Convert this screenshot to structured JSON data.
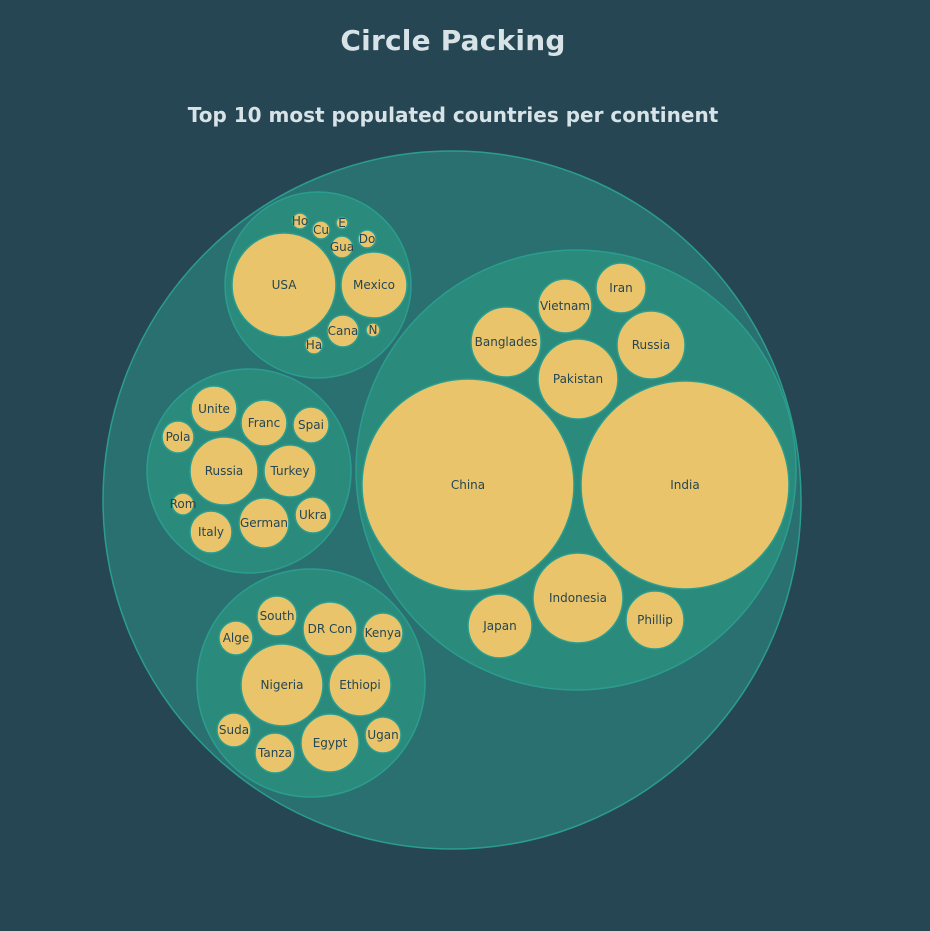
{
  "title": "Circle Packing",
  "subtitle": "Top 10 most populated countries per continent",
  "colors": {
    "background": "#264653",
    "root_fill": "#2a7070",
    "group_fill": "#2a8a7c",
    "stroke": "#2a9d8f",
    "leaf_fill": "#e9c46a",
    "leaf_stroke": "#2a9d8f",
    "leaf_text": "#264653",
    "title_text": "#d8e3e7"
  },
  "chart_data": {
    "type": "circle-packing",
    "groups": [
      {
        "leaves": [
          {
            "label": "China",
            "value": 1412
          },
          {
            "label": "India",
            "value": 1408
          },
          {
            "label": "Indonesia",
            "value": 274
          },
          {
            "label": "Pakistan",
            "value": 232
          },
          {
            "label": "Banglades",
            "value": 169
          },
          {
            "label": "Japan",
            "value": 126
          },
          {
            "label": "Phillip",
            "value": 114
          },
          {
            "label": "Vietnam",
            "value": 98
          },
          {
            "label": "Iran",
            "value": 88
          },
          {
            "label": "Russia",
            "value": 143
          }
        ]
      },
      {
        "leaves": [
          {
            "label": "Russia",
            "value": 143
          },
          {
            "label": "German",
            "value": 83
          },
          {
            "label": "Turkey",
            "value": 85
          },
          {
            "label": "Franc",
            "value": 68
          },
          {
            "label": "Unite",
            "value": 67
          },
          {
            "label": "Italy",
            "value": 59
          },
          {
            "label": "Spai",
            "value": 47
          },
          {
            "label": "Ukra",
            "value": 44
          },
          {
            "label": "Pola",
            "value": 38
          },
          {
            "label": "Rom",
            "value": 19
          }
        ]
      },
      {
        "leaves": [
          {
            "label": "Nigeria",
            "value": 213
          },
          {
            "label": "Ethiopi",
            "value": 120
          },
          {
            "label": "Egypt",
            "value": 109
          },
          {
            "label": "DR Con",
            "value": 96
          },
          {
            "label": "Tanza",
            "value": 62
          },
          {
            "label": "South",
            "value": 60
          },
          {
            "label": "Kenya",
            "value": 54
          },
          {
            "label": "Ugan",
            "value": 47
          },
          {
            "label": "Alge",
            "value": 44
          },
          {
            "label": "Suda",
            "value": 44
          }
        ]
      },
      {
        "leaves": [
          {
            "label": "USA",
            "value": 332
          },
          {
            "label": "Mexico",
            "value": 128
          },
          {
            "label": "Cana",
            "value": 38
          },
          {
            "label": "Gua",
            "value": 17
          },
          {
            "label": "Ha",
            "value": 11
          },
          {
            "label": "Cu",
            "value": 11
          },
          {
            "label": "Do",
            "value": 11
          },
          {
            "label": "Ho",
            "value": 10
          },
          {
            "label": "N",
            "value": 7
          },
          {
            "label": "E",
            "value": 6
          }
        ]
      }
    ]
  }
}
